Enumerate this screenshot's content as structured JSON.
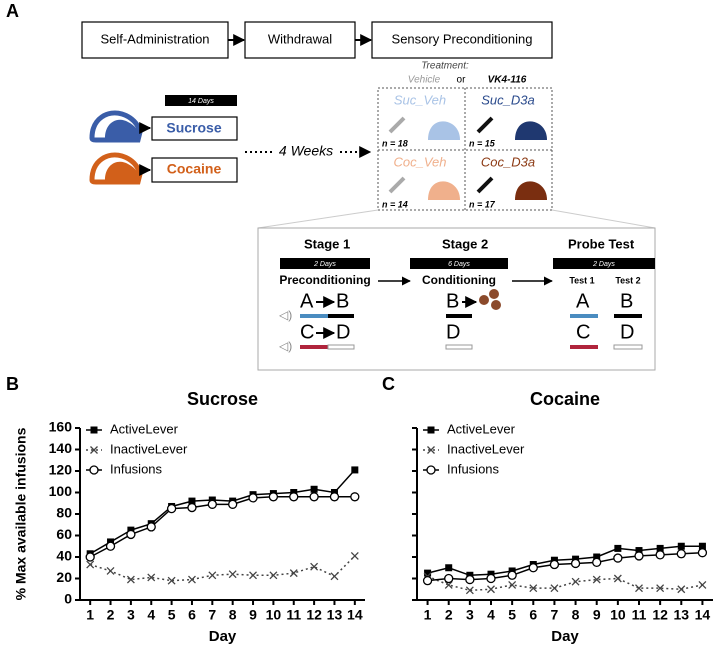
{
  "diagram": {
    "panel_label": "A",
    "flow": [
      "Self-Administration",
      "Withdrawal",
      "Sensory Preconditioning"
    ],
    "days_label": "14 Days",
    "groups": [
      "Sucrose",
      "Cocaine"
    ],
    "gap": "4 Weeks",
    "treatment": {
      "title": "Treatment:",
      "vehicle": "Vehicle",
      "or": "or",
      "drug": "VK4-116"
    },
    "cells": [
      {
        "name": "Suc_Veh",
        "n": "n = 18"
      },
      {
        "name": "Suc_D3a",
        "n": "n = 15"
      },
      {
        "name": "Coc_Veh",
        "n": "n = 14"
      },
      {
        "name": "Coc_D3a",
        "n": "n = 17"
      }
    ],
    "stages": [
      {
        "title": "Stage 1",
        "days": "2 Days",
        "phase": "Preconditioning"
      },
      {
        "title": "Stage 2",
        "days": "6 Days",
        "phase": "Conditioning"
      },
      {
        "title": "Probe Test",
        "days": "2 Days"
      }
    ],
    "tests": [
      "Test 1",
      "Test 2"
    ],
    "stimuli": [
      "A",
      "B",
      "C",
      "D"
    ]
  },
  "chart_data": [
    {
      "type": "line",
      "panel_label": "B",
      "title": "Sucrose",
      "x_label": "Day",
      "y_label": "% Max available infusions",
      "x": [
        1,
        2,
        3,
        4,
        5,
        6,
        7,
        8,
        9,
        10,
        11,
        12,
        13,
        14
      ],
      "xlim": [
        0.5,
        14.5
      ],
      "xticks": [
        1,
        2,
        3,
        4,
        5,
        6,
        7,
        8,
        9,
        10,
        11,
        12,
        13,
        14
      ],
      "ylim": [
        0,
        160
      ],
      "yticks": [
        0,
        20,
        40,
        60,
        80,
        100,
        120,
        140,
        160
      ],
      "legend": "upper left",
      "series": [
        {
          "name": "ActiveLever",
          "color": "#000000",
          "marker": "square",
          "linestyle": "solid",
          "values": [
            43,
            54,
            65,
            71,
            87,
            92,
            93,
            92,
            98,
            99,
            100,
            103,
            100,
            121
          ]
        },
        {
          "name": "InactiveLever",
          "color": "#444444",
          "marker": "x",
          "linestyle": "dotted",
          "values": [
            33,
            27,
            19,
            21,
            18,
            19,
            23,
            24,
            23,
            23,
            25,
            31,
            22,
            41
          ]
        },
        {
          "name": "Infusions",
          "color": "#000000",
          "marker": "circle-open",
          "linestyle": "solid",
          "values": [
            40,
            50,
            61,
            68,
            85,
            86,
            89,
            89,
            95,
            96,
            96,
            96,
            96,
            96
          ]
        }
      ]
    },
    {
      "type": "line",
      "panel_label": "C",
      "title": "Cocaine",
      "x_label": "Day",
      "x": [
        1,
        2,
        3,
        4,
        5,
        6,
        7,
        8,
        9,
        10,
        11,
        12,
        13,
        14
      ],
      "xlim": [
        0.5,
        14.5
      ],
      "xticks": [
        1,
        2,
        3,
        4,
        5,
        6,
        7,
        8,
        9,
        10,
        11,
        12,
        13,
        14
      ],
      "ylim": [
        0,
        160
      ],
      "yticks": [
        0,
        20,
        40,
        60,
        80,
        100,
        120,
        140,
        160
      ],
      "legend": "upper left",
      "series": [
        {
          "name": "ActiveLever",
          "color": "#000000",
          "marker": "square",
          "linestyle": "solid",
          "values": [
            25,
            30,
            23,
            24,
            27,
            33,
            37,
            38,
            40,
            48,
            46,
            48,
            50,
            50
          ]
        },
        {
          "name": "InactiveLever",
          "color": "#444444",
          "marker": "x",
          "linestyle": "dotted",
          "values": [
            22,
            14,
            9,
            10,
            14,
            11,
            11,
            17,
            19,
            20,
            11,
            11,
            10,
            14
          ]
        },
        {
          "name": "Infusions",
          "color": "#000000",
          "marker": "circle-open",
          "linestyle": "solid",
          "values": [
            18,
            20,
            19,
            20,
            23,
            30,
            33,
            34,
            35,
            39,
            41,
            42,
            43,
            44
          ]
        }
      ]
    }
  ]
}
